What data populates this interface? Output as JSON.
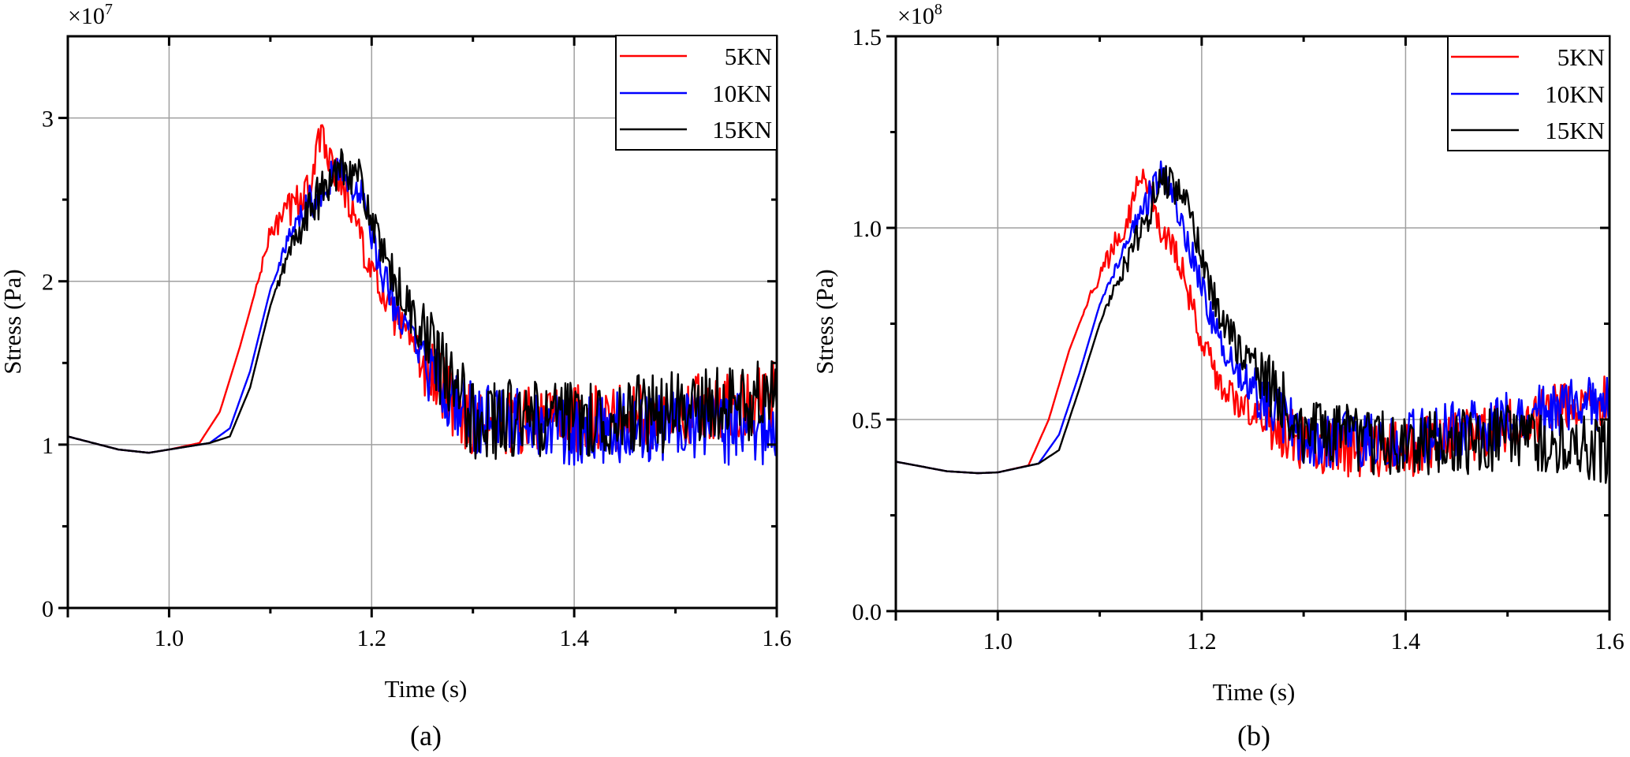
{
  "chart_data": [
    {
      "type": "line",
      "panel_label": "(a)",
      "xlabel": "Time (s)",
      "ylabel": "Stress (Pa)",
      "y_multiplier": "×10",
      "y_multiplier_exp": "7",
      "xlim": [
        0.9,
        1.6
      ],
      "ylim": [
        0,
        3.5
      ],
      "x_ticks": [
        1.0,
        1.2,
        1.4,
        1.6
      ],
      "x_tick_labels": [
        "1.0",
        "1.2",
        "1.4",
        "1.6"
      ],
      "x_minor_ticks": [
        0.9,
        1.1,
        1.3,
        1.5
      ],
      "y_ticks": [
        0,
        1,
        2,
        3
      ],
      "y_tick_labels": [
        "0",
        "1",
        "2",
        "3"
      ],
      "y_minor_ticks": [
        0.5,
        1.5,
        2.5
      ],
      "grid": true,
      "legend_position": "top-right",
      "series": [
        {
          "name": "5KN",
          "color": "#ff0000",
          "keypoints": [
            [
              0.9,
              1.05
            ],
            [
              0.95,
              0.97
            ],
            [
              0.98,
              0.95
            ],
            [
              1.0,
              0.97
            ],
            [
              1.03,
              1.01
            ],
            [
              1.05,
              1.2
            ],
            [
              1.07,
              1.6
            ],
            [
              1.09,
              2.05
            ],
            [
              1.1,
              2.3
            ],
            [
              1.12,
              2.45
            ],
            [
              1.14,
              2.6
            ],
            [
              1.15,
              2.9
            ],
            [
              1.16,
              2.75
            ],
            [
              1.18,
              2.45
            ],
            [
              1.2,
              2.05
            ],
            [
              1.22,
              1.8
            ],
            [
              1.25,
              1.5
            ],
            [
              1.28,
              1.25
            ],
            [
              1.3,
              1.15
            ],
            [
              1.4,
              1.15
            ],
            [
              1.5,
              1.2
            ],
            [
              1.6,
              1.3
            ]
          ],
          "noise": 0.17,
          "noise_start": 1.08
        },
        {
          "name": "10KN",
          "color": "#0000ff",
          "keypoints": [
            [
              0.9,
              1.05
            ],
            [
              0.95,
              0.97
            ],
            [
              0.98,
              0.95
            ],
            [
              1.0,
              0.97
            ],
            [
              1.04,
              1.01
            ],
            [
              1.06,
              1.1
            ],
            [
              1.08,
              1.45
            ],
            [
              1.1,
              1.95
            ],
            [
              1.12,
              2.3
            ],
            [
              1.14,
              2.5
            ],
            [
              1.16,
              2.65
            ],
            [
              1.17,
              2.7
            ],
            [
              1.19,
              2.5
            ],
            [
              1.21,
              2.05
            ],
            [
              1.23,
              1.75
            ],
            [
              1.26,
              1.4
            ],
            [
              1.3,
              1.15
            ],
            [
              1.4,
              1.1
            ],
            [
              1.5,
              1.1
            ],
            [
              1.6,
              1.1
            ]
          ],
          "noise": 0.18,
          "noise_start": 1.1
        },
        {
          "name": "15KN",
          "color": "#000000",
          "keypoints": [
            [
              0.9,
              1.05
            ],
            [
              0.95,
              0.97
            ],
            [
              0.98,
              0.95
            ],
            [
              1.0,
              0.97
            ],
            [
              1.04,
              1.01
            ],
            [
              1.06,
              1.05
            ],
            [
              1.08,
              1.35
            ],
            [
              1.1,
              1.85
            ],
            [
              1.12,
              2.2
            ],
            [
              1.14,
              2.45
            ],
            [
              1.16,
              2.6
            ],
            [
              1.17,
              2.75
            ],
            [
              1.19,
              2.6
            ],
            [
              1.21,
              2.15
            ],
            [
              1.24,
              1.8
            ],
            [
              1.27,
              1.45
            ],
            [
              1.3,
              1.15
            ],
            [
              1.4,
              1.15
            ],
            [
              1.5,
              1.2
            ],
            [
              1.6,
              1.3
            ]
          ],
          "noise": 0.2,
          "noise_start": 1.1
        }
      ]
    },
    {
      "type": "line",
      "panel_label": "(b)",
      "xlabel": "Time (s)",
      "ylabel": "Stress (Pa)",
      "y_multiplier": "×10",
      "y_multiplier_exp": "8",
      "xlim": [
        0.9,
        1.6
      ],
      "ylim": [
        0,
        1.5
      ],
      "x_ticks": [
        1.0,
        1.2,
        1.4,
        1.6
      ],
      "x_tick_labels": [
        "1.0",
        "1.2",
        "1.4",
        "1.6"
      ],
      "x_minor_ticks": [
        0.9,
        1.1,
        1.3,
        1.5
      ],
      "y_ticks": [
        0.0,
        0.5,
        1.0,
        1.5
      ],
      "y_tick_labels": [
        "0.0",
        "0.5",
        "1.0",
        "1.5"
      ],
      "y_minor_ticks": [
        0.25,
        0.75,
        1.25
      ],
      "grid": true,
      "legend_position": "top-right",
      "series": [
        {
          "name": "5KN",
          "color": "#ff0000",
          "keypoints": [
            [
              0.9,
              0.39
            ],
            [
              0.95,
              0.365
            ],
            [
              0.98,
              0.36
            ],
            [
              1.0,
              0.362
            ],
            [
              1.03,
              0.38
            ],
            [
              1.05,
              0.5
            ],
            [
              1.07,
              0.68
            ],
            [
              1.09,
              0.82
            ],
            [
              1.11,
              0.93
            ],
            [
              1.13,
              1.05
            ],
            [
              1.14,
              1.15
            ],
            [
              1.16,
              1.0
            ],
            [
              1.18,
              0.9
            ],
            [
              1.2,
              0.7
            ],
            [
              1.22,
              0.58
            ],
            [
              1.25,
              0.52
            ],
            [
              1.28,
              0.47
            ],
            [
              1.3,
              0.43
            ],
            [
              1.4,
              0.42
            ],
            [
              1.5,
              0.48
            ],
            [
              1.6,
              0.56
            ]
          ],
          "noise": 0.06,
          "noise_start": 1.08
        },
        {
          "name": "10KN",
          "color": "#0000ff",
          "keypoints": [
            [
              0.9,
              0.39
            ],
            [
              0.95,
              0.365
            ],
            [
              0.98,
              0.36
            ],
            [
              1.0,
              0.362
            ],
            [
              1.04,
              0.385
            ],
            [
              1.06,
              0.46
            ],
            [
              1.08,
              0.62
            ],
            [
              1.1,
              0.8
            ],
            [
              1.12,
              0.92
            ],
            [
              1.14,
              1.03
            ],
            [
              1.16,
              1.15
            ],
            [
              1.18,
              1.02
            ],
            [
              1.2,
              0.85
            ],
            [
              1.22,
              0.68
            ],
            [
              1.25,
              0.58
            ],
            [
              1.28,
              0.5
            ],
            [
              1.3,
              0.45
            ],
            [
              1.4,
              0.45
            ],
            [
              1.5,
              0.5
            ],
            [
              1.6,
              0.55
            ]
          ],
          "noise": 0.06,
          "noise_start": 1.1
        },
        {
          "name": "15KN",
          "color": "#000000",
          "keypoints": [
            [
              0.9,
              0.39
            ],
            [
              0.95,
              0.365
            ],
            [
              0.98,
              0.36
            ],
            [
              1.0,
              0.362
            ],
            [
              1.04,
              0.385
            ],
            [
              1.06,
              0.42
            ],
            [
              1.08,
              0.58
            ],
            [
              1.1,
              0.75
            ],
            [
              1.12,
              0.88
            ],
            [
              1.14,
              0.98
            ],
            [
              1.16,
              1.13
            ],
            [
              1.18,
              1.1
            ],
            [
              1.2,
              0.92
            ],
            [
              1.22,
              0.75
            ],
            [
              1.25,
              0.64
            ],
            [
              1.28,
              0.55
            ],
            [
              1.3,
              0.47
            ],
            [
              1.4,
              0.43
            ],
            [
              1.5,
              0.45
            ],
            [
              1.6,
              0.42
            ]
          ],
          "noise": 0.07,
          "noise_start": 1.1
        }
      ]
    }
  ]
}
